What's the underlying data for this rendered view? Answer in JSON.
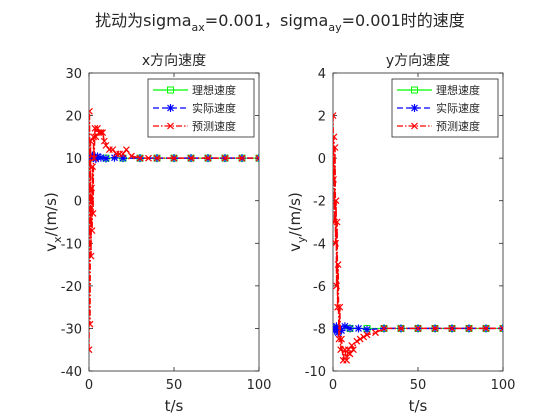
{
  "figure": {
    "title_main": "扰动为sigma",
    "title_sub1": "ax",
    "title_mid": "=0.001，sigma",
    "title_sub2": "ay",
    "title_end": "=0.001时的速度"
  },
  "chart_data": [
    {
      "type": "line",
      "title": "x方向速度",
      "xlabel": "t/s",
      "ylabel_main": "v",
      "ylabel_sub": "x",
      "ylabel_rest": "/(m/s)",
      "xlim": [
        0,
        100
      ],
      "ylim": [
        -40,
        30
      ],
      "xticks": [
        0,
        50,
        100
      ],
      "yticks": [
        -40,
        -30,
        -20,
        -10,
        0,
        10,
        20,
        30
      ],
      "grid": false,
      "legend_position": "top-right",
      "series": [
        {
          "name": "理想速度",
          "color": "#00ff00",
          "marker": "square",
          "x": [
            0,
            10,
            20,
            30,
            40,
            50,
            60,
            70,
            80,
            90,
            100
          ],
          "values": [
            10,
            10,
            10,
            10,
            10,
            10,
            10,
            10,
            10,
            10,
            10
          ]
        },
        {
          "name": "实际速度",
          "color": "#0000ff",
          "marker": "star",
          "x": [
            0,
            1,
            2,
            3,
            4,
            5,
            7,
            10,
            15,
            20,
            30,
            40,
            50,
            60,
            70,
            80,
            90,
            100
          ],
          "values": [
            10,
            10.3,
            10.6,
            10.2,
            9.8,
            10.4,
            10.1,
            9.9,
            10.1,
            10,
            10,
            10,
            10,
            10,
            10,
            10,
            10,
            10
          ]
        },
        {
          "name": "预测速度",
          "color": "#ff0000",
          "marker": "x",
          "x": [
            0,
            0.3,
            0.6,
            0.9,
            1.2,
            1.5,
            1.8,
            2.1,
            2.4,
            2.7,
            3,
            3.5,
            4,
            5,
            6,
            7,
            8,
            9,
            10,
            12,
            14,
            16,
            18,
            20,
            22,
            25,
            30,
            35,
            40,
            50,
            60,
            70,
            80,
            90,
            100
          ],
          "values": [
            -35,
            21,
            -29,
            14,
            -13,
            3,
            -7,
            8,
            -3,
            15,
            10,
            17,
            15,
            17,
            16,
            16,
            16,
            14,
            13,
            12,
            12,
            11,
            11,
            11,
            12,
            10.5,
            10,
            10,
            10,
            10,
            10,
            10,
            10,
            10,
            10
          ]
        }
      ]
    },
    {
      "type": "line",
      "title": "y方向速度",
      "xlabel": "t/s",
      "ylabel_main": "v",
      "ylabel_sub": "y",
      "ylabel_rest": "/(m/s)",
      "xlim": [
        0,
        100
      ],
      "ylim": [
        -10,
        4
      ],
      "xticks": [
        0,
        50,
        100
      ],
      "yticks": [
        -10,
        -8,
        -6,
        -4,
        -2,
        0,
        2,
        4
      ],
      "grid": false,
      "legend_position": "top-right",
      "series": [
        {
          "name": "理想速度",
          "color": "#00ff00",
          "marker": "square",
          "x": [
            0,
            10,
            20,
            30,
            40,
            50,
            60,
            70,
            80,
            90,
            100
          ],
          "values": [
            -8,
            -8,
            -8,
            -8,
            -8,
            -8,
            -8,
            -8,
            -8,
            -8,
            -8
          ]
        },
        {
          "name": "实际速度",
          "color": "#0000ff",
          "marker": "star",
          "x": [
            0,
            1,
            2,
            3,
            4,
            5,
            7,
            10,
            15,
            20,
            30,
            40,
            50,
            60,
            70,
            80,
            90,
            100
          ],
          "values": [
            -8,
            -8.1,
            -7.9,
            -8.2,
            -8,
            -8.1,
            -7.9,
            -8,
            -8,
            -8.05,
            -8,
            -8,
            -8,
            -8,
            -8,
            -8,
            -8,
            -8
          ]
        },
        {
          "name": "预测速度",
          "color": "#ff0000",
          "marker": "x",
          "x": [
            0,
            0.3,
            0.6,
            0.9,
            1.2,
            1.5,
            1.8,
            2.1,
            2.4,
            2.7,
            3,
            3.5,
            4,
            4.5,
            5,
            6,
            7,
            8,
            9,
            10,
            11,
            12,
            14,
            16,
            18,
            20,
            25,
            30,
            40,
            50,
            60,
            70,
            80,
            90,
            100
          ],
          "values": [
            2,
            -1,
            1,
            -3,
            0.5,
            -4,
            -2,
            -6,
            -3,
            -7,
            -5,
            -8.5,
            -7,
            -9,
            -8.5,
            -9.5,
            -9,
            -9.5,
            -9,
            -9.2,
            -8.8,
            -9,
            -8.6,
            -8.5,
            -8.4,
            -8.3,
            -8.2,
            -8,
            -8,
            -8,
            -8,
            -8,
            -8,
            -8,
            -8
          ]
        }
      ]
    }
  ]
}
